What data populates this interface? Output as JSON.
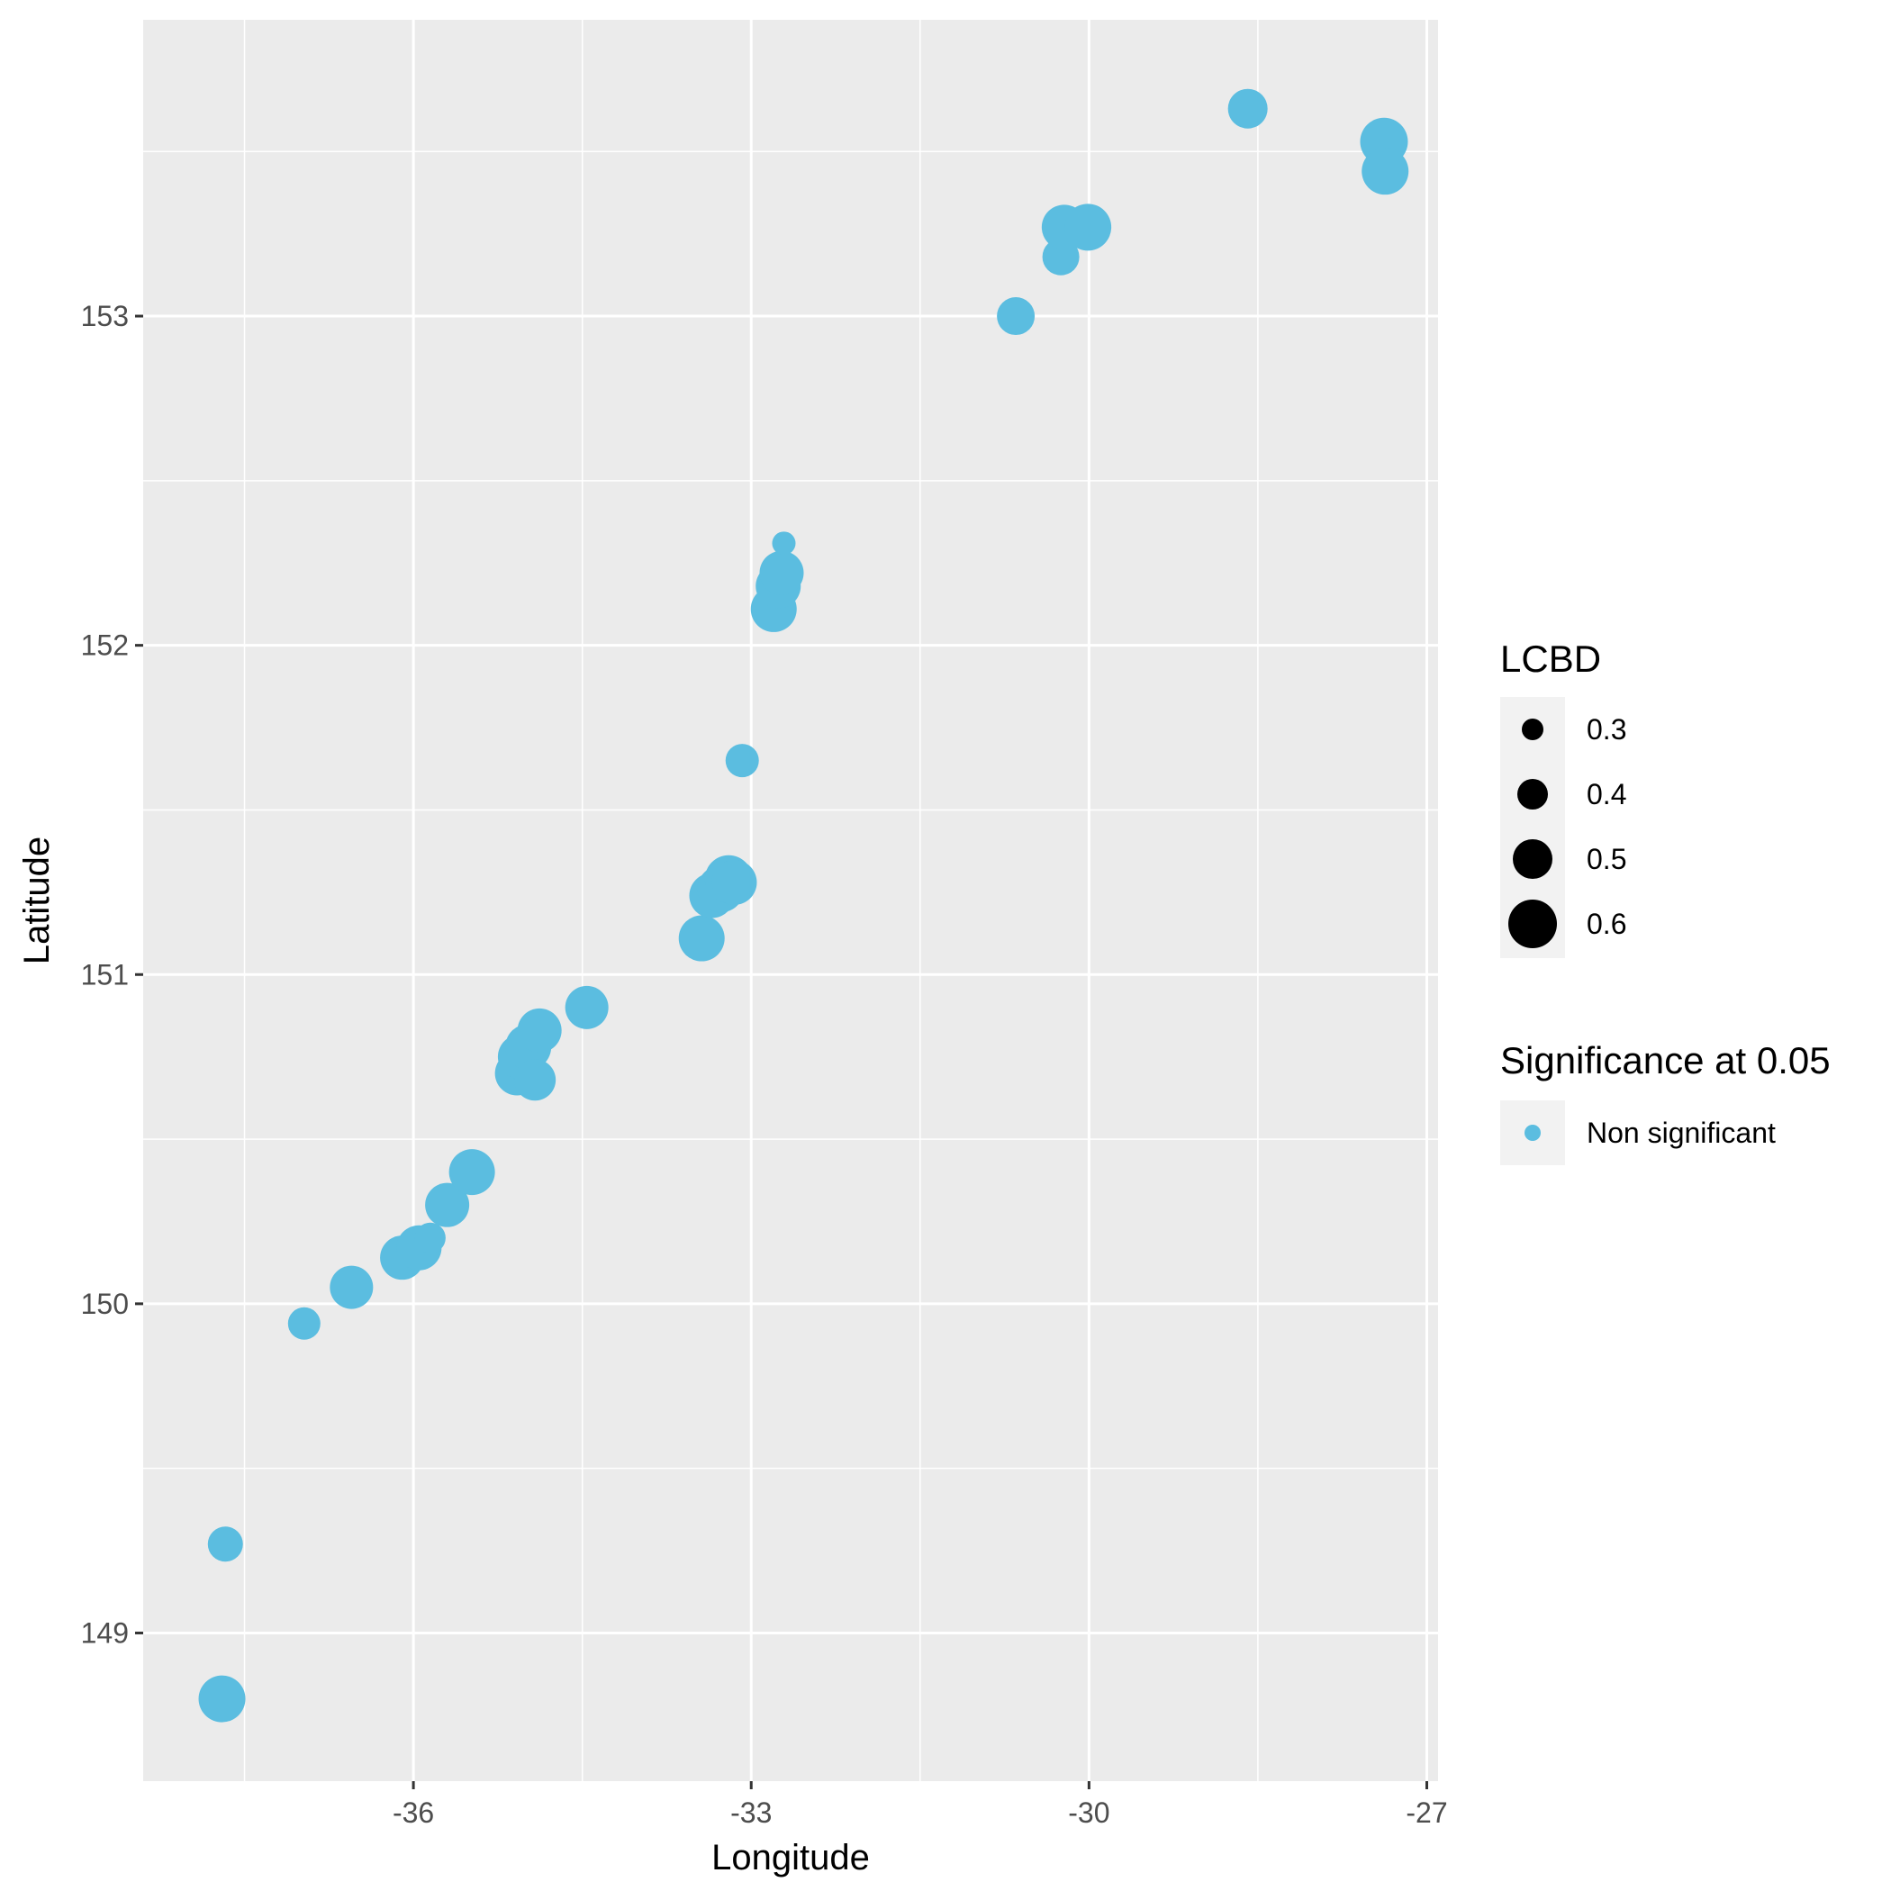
{
  "chart_data": {
    "type": "scatter",
    "title": "",
    "xlabel": "Longitude",
    "ylabel": "Latitude",
    "xlim": [
      -38.4,
      -26.9
    ],
    "ylim": [
      148.55,
      153.9
    ],
    "x_ticks": [
      -36,
      -33,
      -30,
      -27
    ],
    "x_tick_labels": [
      "-36",
      "-33",
      "-30",
      "-27"
    ],
    "y_ticks": [
      149,
      150,
      151,
      152,
      153
    ],
    "y_tick_labels": [
      "149",
      "150",
      "151",
      "152",
      "153"
    ],
    "grid": true,
    "colors": {
      "panel_background": "#ebebeb",
      "grid": "#ffffff",
      "point": "#5bbde0",
      "legend_key_background": "#f2f2f2",
      "legend_size_key": "#000000"
    },
    "legends": {
      "size": {
        "title": "LCBD",
        "breaks": [
          0.3,
          0.4,
          0.5,
          0.6
        ],
        "labels": [
          "0.3",
          "0.4",
          "0.5",
          "0.6"
        ]
      },
      "color": {
        "title": "Significance at 0.05",
        "labels": [
          "Non significant"
        ]
      }
    },
    "series": [
      {
        "name": "Non significant",
        "points": [
          {
            "x": -37.7,
            "y": 148.8,
            "lcbd": 0.58
          },
          {
            "x": -37.67,
            "y": 149.27,
            "lcbd": 0.45
          },
          {
            "x": -36.97,
            "y": 149.94,
            "lcbd": 0.42
          },
          {
            "x": -36.55,
            "y": 150.05,
            "lcbd": 0.54
          },
          {
            "x": -36.1,
            "y": 150.14,
            "lcbd": 0.55
          },
          {
            "x": -35.95,
            "y": 150.17,
            "lcbd": 0.56
          },
          {
            "x": -35.85,
            "y": 150.2,
            "lcbd": 0.4
          },
          {
            "x": -35.7,
            "y": 150.3,
            "lcbd": 0.55
          },
          {
            "x": -35.48,
            "y": 150.4,
            "lcbd": 0.57
          },
          {
            "x": -35.08,
            "y": 150.7,
            "lcbd": 0.55
          },
          {
            "x": -35.05,
            "y": 150.75,
            "lcbd": 0.56
          },
          {
            "x": -34.98,
            "y": 150.78,
            "lcbd": 0.57
          },
          {
            "x": -34.92,
            "y": 150.68,
            "lcbd": 0.52
          },
          {
            "x": -34.88,
            "y": 150.83,
            "lcbd": 0.55
          },
          {
            "x": -34.46,
            "y": 150.9,
            "lcbd": 0.54
          },
          {
            "x": -33.44,
            "y": 151.11,
            "lcbd": 0.57
          },
          {
            "x": -33.35,
            "y": 151.24,
            "lcbd": 0.56
          },
          {
            "x": -33.27,
            "y": 151.26,
            "lcbd": 0.58
          },
          {
            "x": -33.2,
            "y": 151.29,
            "lcbd": 0.59
          },
          {
            "x": -33.15,
            "y": 151.28,
            "lcbd": 0.56
          },
          {
            "x": -33.08,
            "y": 151.65,
            "lcbd": 0.43
          },
          {
            "x": -32.8,
            "y": 152.11,
            "lcbd": 0.57
          },
          {
            "x": -32.76,
            "y": 152.18,
            "lcbd": 0.56
          },
          {
            "x": -32.73,
            "y": 152.22,
            "lcbd": 0.55
          },
          {
            "x": -32.71,
            "y": 152.31,
            "lcbd": 0.32
          },
          {
            "x": -30.65,
            "y": 153.0,
            "lcbd": 0.48
          },
          {
            "x": -30.25,
            "y": 153.18,
            "lcbd": 0.47
          },
          {
            "x": -30.22,
            "y": 153.27,
            "lcbd": 0.56
          },
          {
            "x": -30.01,
            "y": 153.27,
            "lcbd": 0.58
          },
          {
            "x": -28.59,
            "y": 153.63,
            "lcbd": 0.5
          },
          {
            "x": -27.38,
            "y": 153.53,
            "lcbd": 0.59
          },
          {
            "x": -27.37,
            "y": 153.44,
            "lcbd": 0.58
          }
        ]
      }
    ]
  }
}
